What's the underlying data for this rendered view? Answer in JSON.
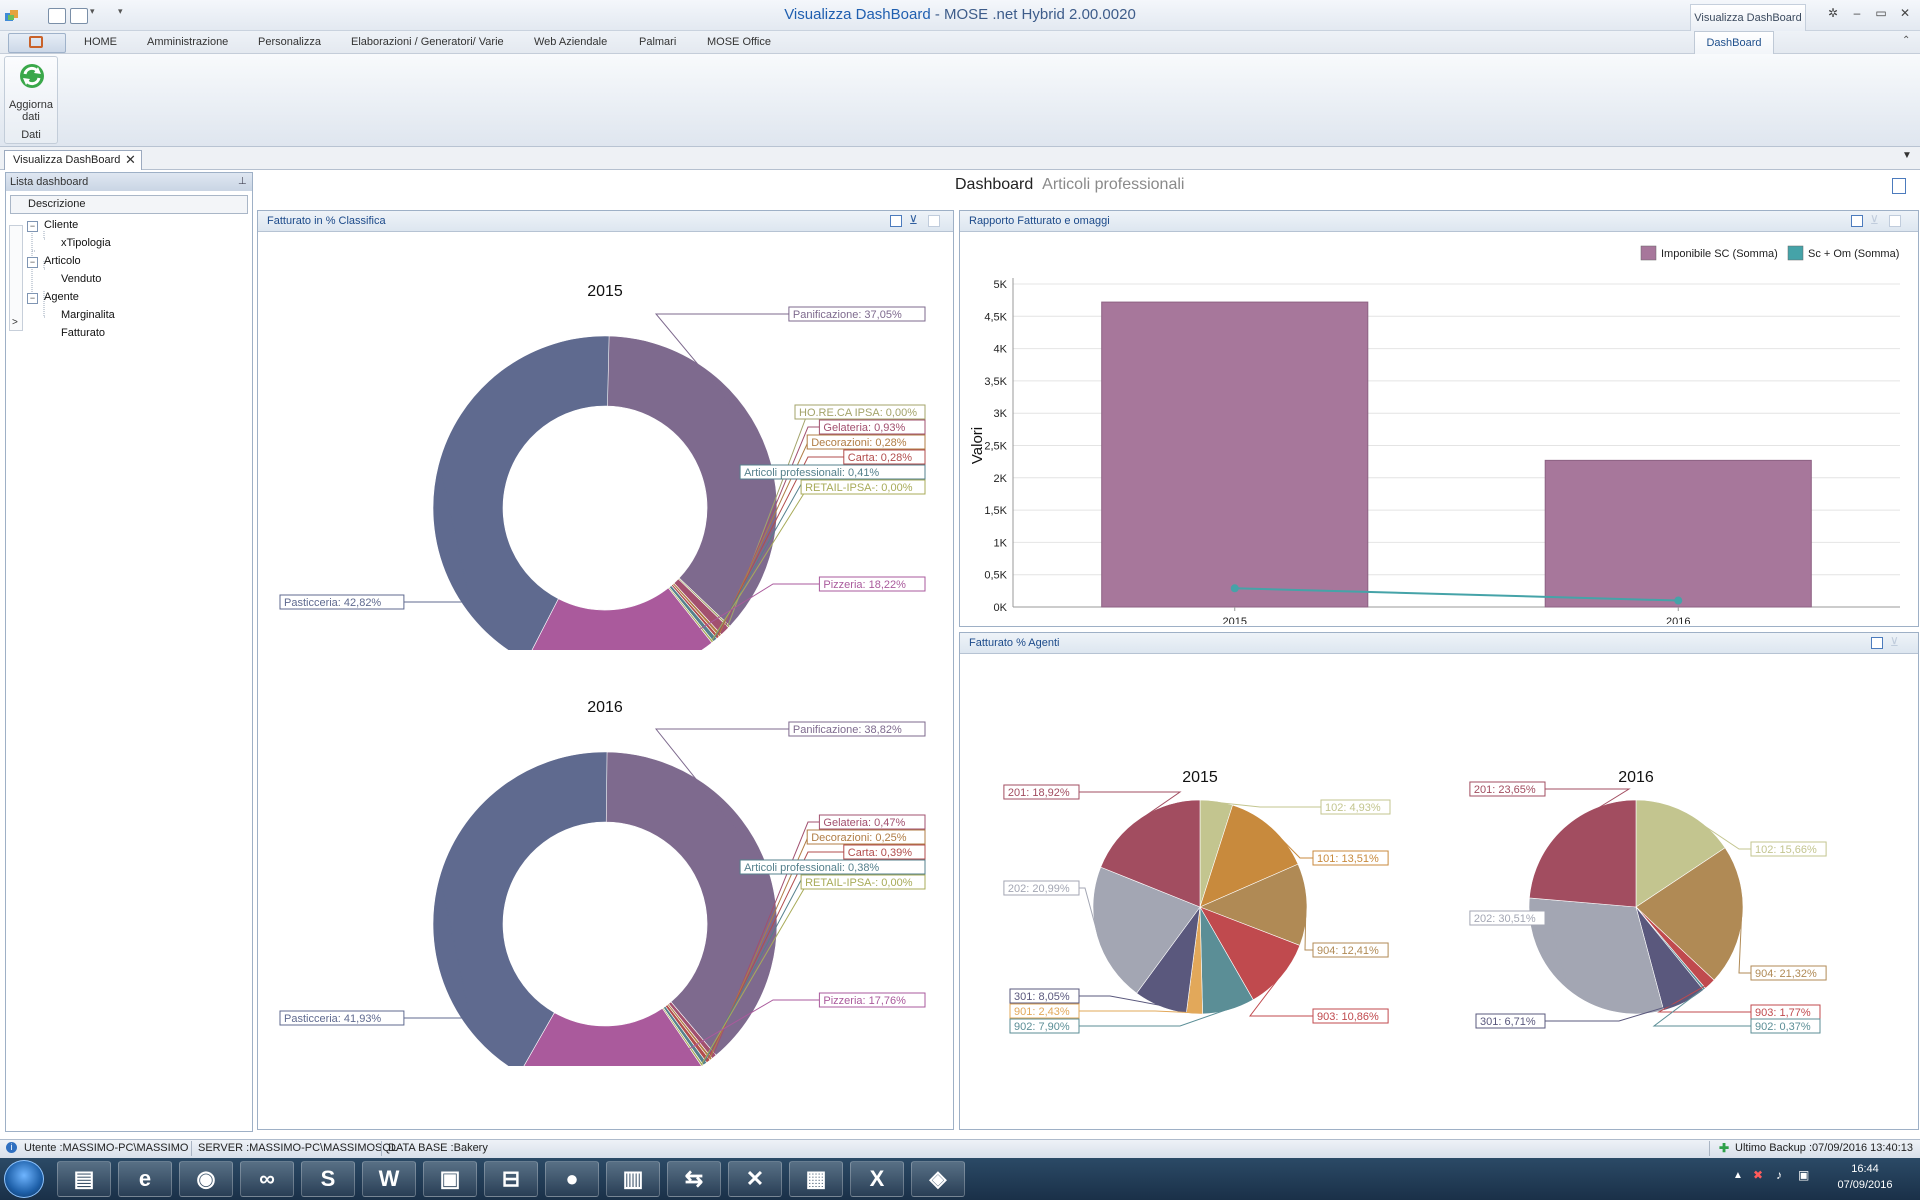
{
  "window": {
    "title_prefix": "Visualizza DashBoard",
    "title_suffix": " - MOSE .net Hybrid 2.00.0020",
    "context_tab_header": "Visualizza DashBoard",
    "controls": {
      "help": "✲",
      "minimize": "–",
      "maximize": "▭",
      "close": "✕"
    }
  },
  "ribbon": {
    "tabs": [
      "HOME",
      "Amministrazione",
      "Personalizza",
      "Elaborazioni / Generatori/ Varie",
      "Web Aziendale",
      "Palmari",
      "MOSE Office"
    ],
    "active_tab": "DashBoard",
    "refresh_label_line1": "Aggiorna",
    "refresh_label_line2": "dati",
    "group_label": "Dati"
  },
  "document_tab": {
    "label": "Visualizza DashBoard",
    "close": "✕"
  },
  "left_panel": {
    "title": "Lista dashboard",
    "column": "Descrizione",
    "tree": [
      {
        "label": "Cliente",
        "children": [
          "xTipologia"
        ]
      },
      {
        "label": "Articolo",
        "children": [
          "Venduto"
        ]
      },
      {
        "label": "Agente",
        "children": [
          "Marginalita",
          "Fatturato"
        ]
      }
    ]
  },
  "dashboard": {
    "title": "Dashboard",
    "subtitle": "Articoli professionali"
  },
  "panels": {
    "donut": {
      "title": "Fatturato in % Classifica"
    },
    "bar": {
      "title": "Rapporto Fatturato e omaggi"
    },
    "agents": {
      "title": "Fatturato % Agenti"
    }
  },
  "colors": {
    "Panificazione": "#7e6a8e",
    "Pasticceria": "#5f6a8f",
    "Pizzeria": "#aa5a9c",
    "HO.RE.CA IPSA": "#a3a36a",
    "Gelateria": "#a2506f",
    "Decorazioni": "#b07d45",
    "Carta": "#b24d4d",
    "Articoli professionali": "#55808c",
    "RETAIL-IPSA-": "#a8ab59",
    "bar": "#a7779b",
    "line": "#45a3a8"
  },
  "chart_data": [
    {
      "type": "pie",
      "donut": true,
      "title": "2015",
      "slices": [
        {
          "label": "Panificazione",
          "value": 37.05,
          "text": "Panificazione: 37,05%"
        },
        {
          "label": "HO.RE.CA IPSA",
          "value": 0.0,
          "text": "HO.RE.CA IPSA: 0,00%"
        },
        {
          "label": "Gelateria",
          "value": 0.93,
          "text": "Gelateria: 0,93%"
        },
        {
          "label": "Decorazioni",
          "value": 0.28,
          "text": "Decorazioni: 0,28%"
        },
        {
          "label": "Carta",
          "value": 0.28,
          "text": "Carta: 0,28%"
        },
        {
          "label": "Articoli professionali",
          "value": 0.41,
          "text": "Articoli professionali: 0,41%"
        },
        {
          "label": "RETAIL-IPSA-",
          "value": 0.0,
          "text": "RETAIL-IPSA-: 0,00%"
        },
        {
          "label": "Pizzeria",
          "value": 18.22,
          "text": "Pizzeria: 18,22%"
        },
        {
          "label": "Pasticceria",
          "value": 42.82,
          "text": "Pasticceria: 42,82%"
        }
      ]
    },
    {
      "type": "pie",
      "donut": true,
      "title": "2016",
      "slices": [
        {
          "label": "Panificazione",
          "value": 38.82,
          "text": "Panificazione: 38,82%"
        },
        {
          "label": "Gelateria",
          "value": 0.47,
          "text": "Gelateria: 0,47%"
        },
        {
          "label": "Decorazioni",
          "value": 0.25,
          "text": "Decorazioni: 0,25%"
        },
        {
          "label": "Carta",
          "value": 0.39,
          "text": "Carta: 0,39%"
        },
        {
          "label": "Articoli professionali",
          "value": 0.38,
          "text": "Articoli professionali: 0,38%"
        },
        {
          "label": "RETAIL-IPSA-",
          "value": 0.0,
          "text": "RETAIL-IPSA-: 0,00%"
        },
        {
          "label": "Pizzeria",
          "value": 17.76,
          "text": "Pizzeria: 17,76%"
        },
        {
          "label": "Pasticceria",
          "value": 41.93,
          "text": "Pasticceria: 41,93%"
        }
      ]
    },
    {
      "type": "bar",
      "title": "Rapporto Fatturato e omaggi",
      "categories": [
        "2015",
        "2016"
      ],
      "series": [
        {
          "name": "Imponibile SC (Somma)",
          "type": "bar",
          "values": [
            4720,
            2270
          ]
        },
        {
          "name": "Sc + Om (Somma)",
          "type": "line",
          "values": [
            290,
            100
          ]
        }
      ],
      "ylabel": "Valori",
      "ylim": [
        0,
        5000
      ],
      "yticks": [
        "0K",
        "0,5K",
        "1K",
        "1,5K",
        "2K",
        "2,5K",
        "3K",
        "3,5K",
        "4K",
        "4,5K",
        "5K"
      ],
      "legend": "top-right",
      "grid": true
    },
    {
      "type": "pie",
      "title": "2015",
      "slices": [
        {
          "label": "102",
          "value": 4.93,
          "text": "102: 4,93%",
          "color": "#c3c58f"
        },
        {
          "label": "101",
          "value": 13.51,
          "text": "101: 13,51%",
          "color": "#c88a3d"
        },
        {
          "label": "904",
          "value": 12.41,
          "text": "904: 12,41%",
          "color": "#b08a55"
        },
        {
          "label": "903",
          "value": 10.86,
          "text": "903: 10,86%",
          "color": "#c04a4e"
        },
        {
          "label": "902",
          "value": 7.9,
          "text": "902: 7,90%",
          "color": "#5b8e96"
        },
        {
          "label": "901",
          "value": 2.43,
          "text": "901: 2,43%",
          "color": "#e2a85a"
        },
        {
          "label": "301",
          "value": 8.05,
          "text": "301: 8,05%",
          "color": "#5a587d"
        },
        {
          "label": "202",
          "value": 20.99,
          "text": "202: 20,99%",
          "color": "#a3a6b3"
        },
        {
          "label": "201",
          "value": 18.92,
          "text": "201: 18,92%",
          "color": "#a24d60"
        }
      ]
    },
    {
      "type": "pie",
      "title": "2016",
      "slices": [
        {
          "label": "102",
          "value": 15.66,
          "text": "102: 15,66%",
          "color": "#c3c58f"
        },
        {
          "label": "904",
          "value": 21.32,
          "text": "904: 21,32%",
          "color": "#b08a55"
        },
        {
          "label": "903",
          "value": 1.77,
          "text": "903: 1,77%",
          "color": "#c04a4e"
        },
        {
          "label": "902",
          "value": 0.37,
          "text": "902: 0,37%",
          "color": "#5b8e96"
        },
        {
          "label": "301",
          "value": 6.71,
          "text": "301: 6,71%",
          "color": "#5a587d"
        },
        {
          "label": "202",
          "value": 30.51,
          "text": "202: 30,51%",
          "color": "#a3a6b3"
        },
        {
          "label": "201",
          "value": 23.65,
          "text": "201: 23,65%",
          "color": "#a24d60"
        }
      ]
    }
  ],
  "status_bar": {
    "user": "Utente :MASSIMO-PC\\MASSIMO",
    "server": "SERVER :MASSIMO-PC\\MASSIMOSQL",
    "database": "DATA BASE :Bakery",
    "backup": "Ultimo Backup :07/09/2016 13:40:13"
  },
  "taskbar": {
    "apps": [
      "explorer-app",
      "internet-explorer-app",
      "chrome-app",
      "infinity-app",
      "skype-app",
      "word-app",
      "presentation-app",
      "sticky-app",
      "green-app",
      "text-app",
      "teamviewer-app",
      "tools-app",
      "grid-app",
      "excel-app",
      "mose-app"
    ],
    "glyphs": [
      "▤",
      "e",
      "◉",
      "∞",
      "S",
      "W",
      "▣",
      "⊟",
      "●",
      "▥",
      "⇆",
      "✕",
      "▦",
      "X",
      "◈"
    ],
    "time": "16:44",
    "date": "07/09/2016",
    "tray": [
      "▲",
      "✖",
      "♪",
      "▣"
    ]
  }
}
